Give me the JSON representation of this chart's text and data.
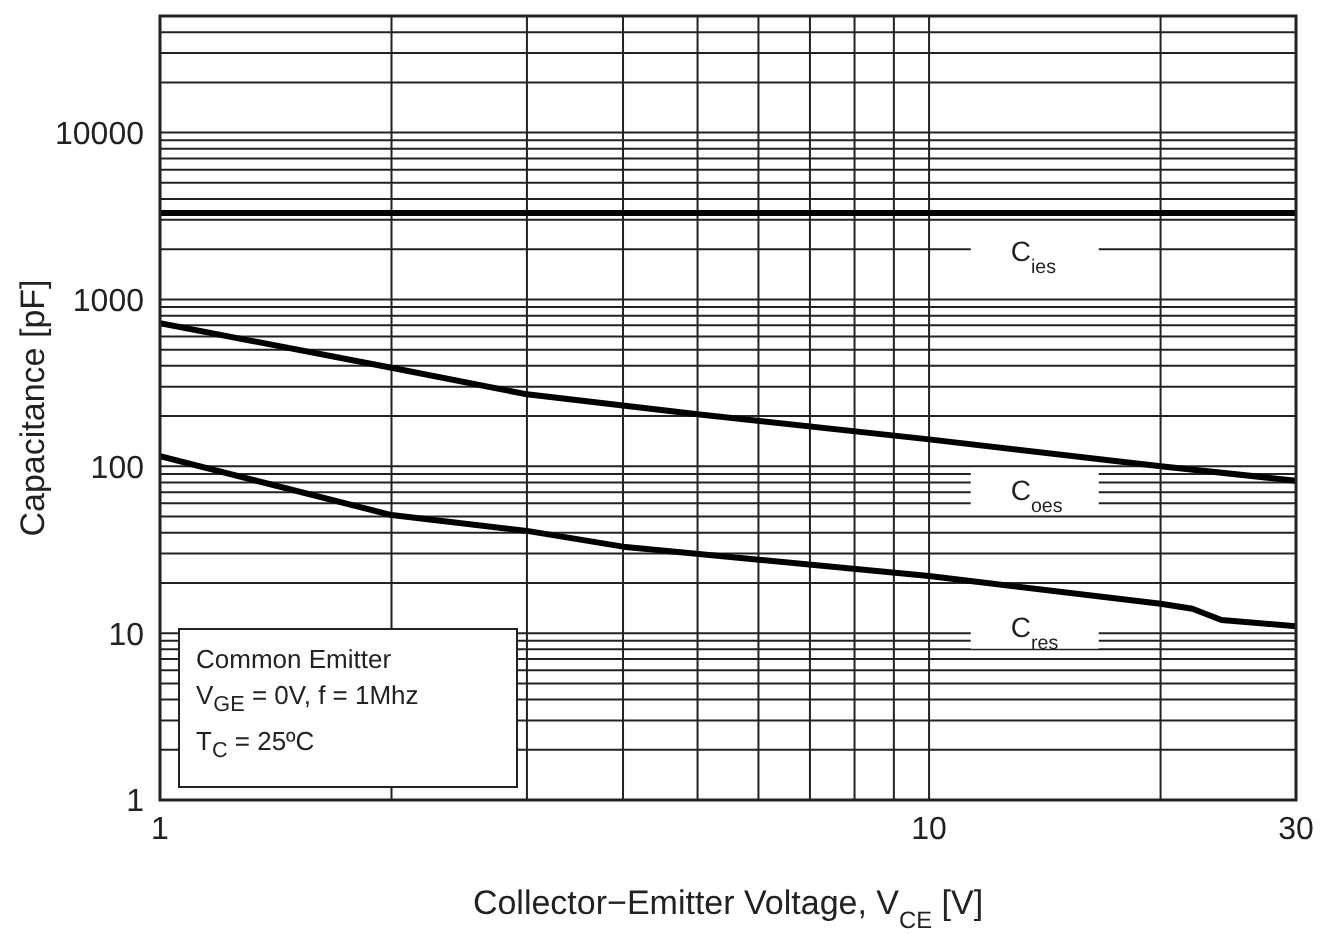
{
  "chart_data": {
    "type": "line",
    "xlabel": "Collector−Emitter Voltage, V$_{CE}$  [V]",
    "ylabel": "Capacitance [pF]",
    "log": "xy",
    "grid": true,
    "marker": "none",
    "line_style": "solid",
    "xlim": [
      1,
      30
    ],
    "xticks": [
      1,
      {
        "value": 2,
        "label": null
      },
      {
        "value": 3,
        "label": null
      },
      {
        "value": 4,
        "label": null
      },
      {
        "value": 5,
        "label": null
      },
      {
        "value": 6,
        "label": null
      },
      {
        "value": 7,
        "label": null
      },
      {
        "value": 8,
        "label": null
      },
      {
        "value": 9,
        "label": null
      },
      10,
      {
        "value": 20,
        "label": null
      },
      30
    ],
    "ylim": [
      1,
      50000
    ],
    "yticks": [
      1,
      {
        "value": 2,
        "label": null
      },
      {
        "value": 3,
        "label": null
      },
      {
        "value": 4,
        "label": null
      },
      {
        "value": 5,
        "label": null
      },
      {
        "value": 6,
        "label": null
      },
      {
        "value": 7,
        "label": null
      },
      {
        "value": 8,
        "label": null
      },
      {
        "value": 9,
        "label": null
      },
      10,
      {
        "value": 20,
        "label": null
      },
      {
        "value": 30,
        "label": null
      },
      {
        "value": 40,
        "label": null
      },
      {
        "value": 50,
        "label": null
      },
      {
        "value": 60,
        "label": null
      },
      {
        "value": 70,
        "label": null
      },
      {
        "value": 80,
        "label": null
      },
      {
        "value": 90,
        "label": null
      },
      100,
      {
        "value": 200,
        "label": null
      },
      {
        "value": 300,
        "label": null
      },
      {
        "value": 400,
        "label": null
      },
      {
        "value": 500,
        "label": null
      },
      {
        "value": 600,
        "label": null
      },
      {
        "value": 700,
        "label": null
      },
      {
        "value": 800,
        "label": null
      },
      {
        "value": 900,
        "label": null
      },
      1000,
      {
        "value": 2000,
        "label": null
      },
      {
        "value": 3000,
        "label": null
      },
      {
        "value": 4000,
        "label": null
      },
      {
        "value": 5000,
        "label": null
      },
      {
        "value": 6000,
        "label": null
      },
      {
        "value": 7000,
        "label": null
      },
      {
        "value": 8000,
        "label": null
      },
      {
        "value": 9000,
        "label": null
      },
      10000,
      {
        "value": 20000,
        "label": null
      },
      {
        "value": 30000,
        "label": null
      },
      {
        "value": 40000,
        "label": null
      },
      {
        "value": 50000,
        "label": null
      }
    ],
    "series": [
      {
        "name": "C$_{ies}$",
        "color": "#000000",
        "x": [
          1,
          30
        ],
        "values": [
          3300,
          3300
        ]
      },
      {
        "name": "C$_{oes}$",
        "color": "#000000",
        "x": [
          1,
          2,
          3,
          5,
          10,
          20,
          30
        ],
        "values": [
          720,
          390,
          270,
          205,
          145,
          100,
          82
        ]
      },
      {
        "name": "C$_{res}$",
        "color": "#000000",
        "x": [
          1,
          2,
          3,
          4,
          10,
          20,
          22,
          24,
          30
        ],
        "values": [
          115,
          51,
          41,
          33,
          22,
          15,
          14,
          12,
          11
        ]
      }
    ],
    "annotations": [
      "Common Emitter",
      "V$_{GE}$  = 0V, f = 1Mhz",
      "T$_{C}$ = 25ºC"
    ]
  }
}
